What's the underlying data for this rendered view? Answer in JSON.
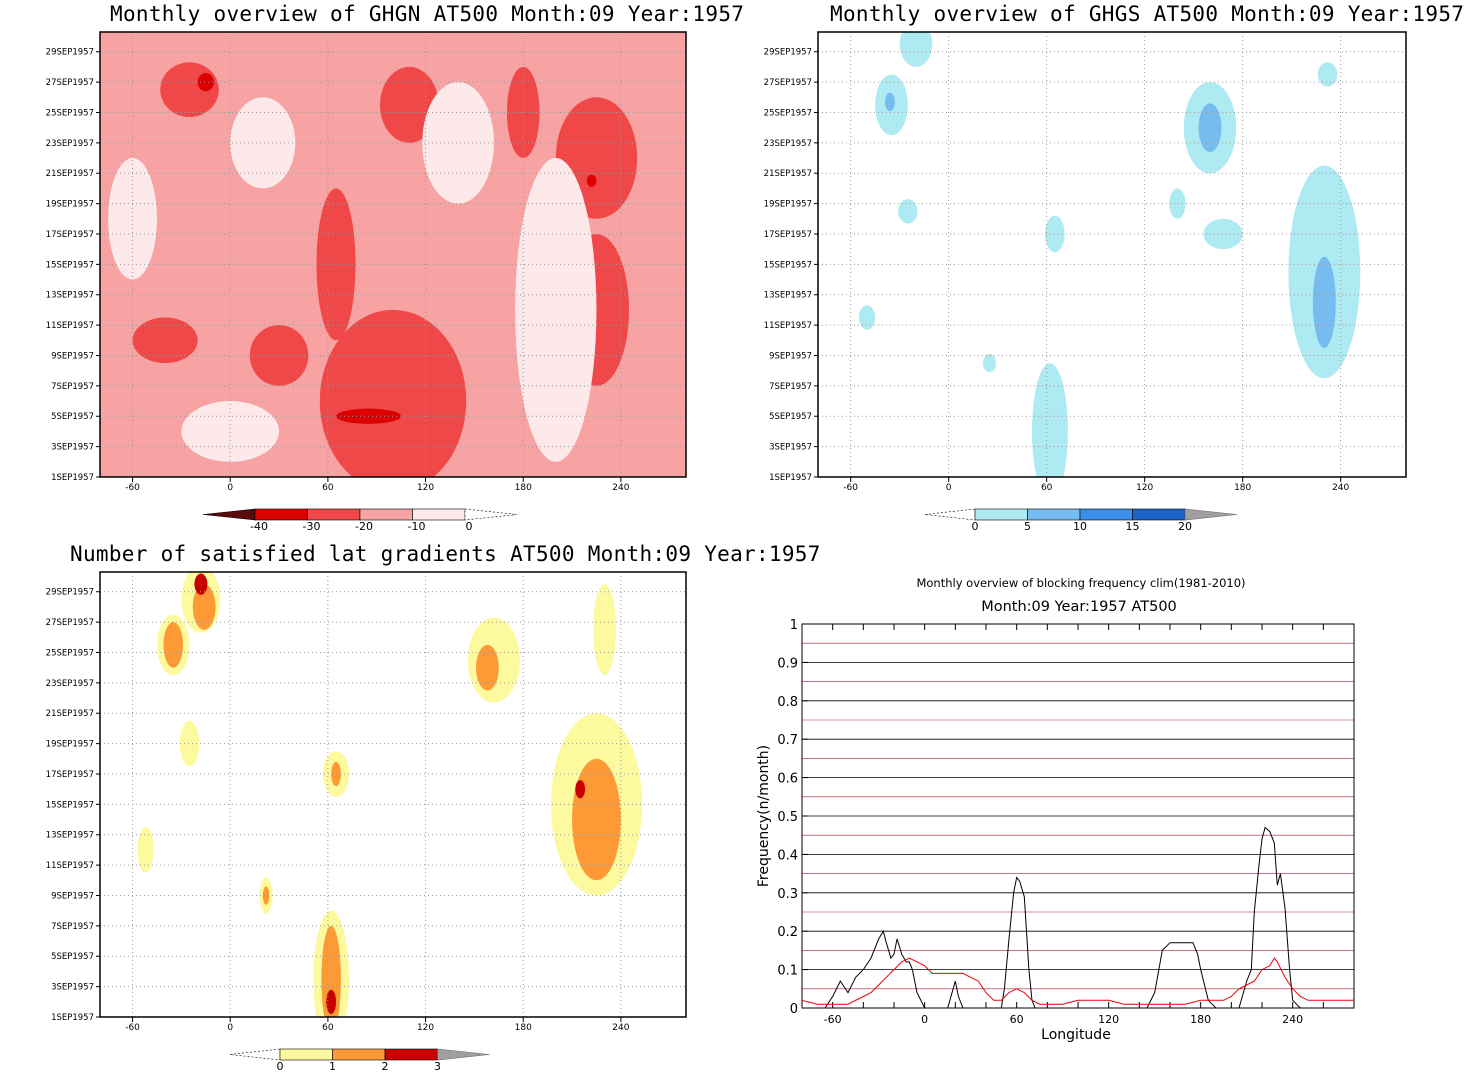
{
  "chart_data": [
    {
      "type": "heatmap",
      "title": "Monthly overview of GHGN AT500 Month:09 Year:1957",
      "xlabel": "",
      "ylabel": "",
      "xticks": [
        "-60",
        "0",
        "60",
        "120",
        "180",
        "240"
      ],
      "yticks": [
        "1SEP1957",
        "3SEP1957",
        "5SEP1957",
        "7SEP1957",
        "9SEP1957",
        "11SEP1957",
        "13SEP1957",
        "15SEP1957",
        "17SEP1957",
        "19SEP1957",
        "21SEP1957",
        "23SEP1957",
        "25SEP1957",
        "27SEP1957",
        "29SEP1957"
      ],
      "xlim": [
        -80,
        280
      ],
      "colorbar": {
        "levels": [
          "-40",
          "-30",
          "-20",
          "-10",
          "0"
        ],
        "colors": [
          "#5a0a0a",
          "#dd0000",
          "#f04848",
          "#f7a3a3",
          "#fde9e9"
        ]
      },
      "regions": [
        {
          "level": "-20",
          "x": 110,
          "y": 25.5,
          "rx": 18,
          "ry": 2.5
        },
        {
          "level": "-20",
          "x": -25,
          "y": 26.5,
          "rx": 18,
          "ry": 1.8
        },
        {
          "level": "-30",
          "x": -15,
          "y": 27,
          "rx": 5,
          "ry": 0.6
        },
        {
          "level": "-20",
          "x": 225,
          "y": 22,
          "rx": 25,
          "ry": 4
        },
        {
          "level": "-30",
          "x": 222,
          "y": 20.5,
          "rx": 3,
          "ry": 0.4
        },
        {
          "level": "-20",
          "x": 65,
          "y": 15,
          "rx": 12,
          "ry": 5
        },
        {
          "level": "-20",
          "x": 225,
          "y": 12,
          "rx": 20,
          "ry": 5
        },
        {
          "level": "-20",
          "x": 180,
          "y": 25,
          "rx": 10,
          "ry": 3
        },
        {
          "level": "-20",
          "x": 30,
          "y": 9,
          "rx": 18,
          "ry": 2
        },
        {
          "level": "-20",
          "x": -40,
          "y": 10,
          "rx": 20,
          "ry": 1.5
        },
        {
          "level": "-20",
          "x": 100,
          "y": 6,
          "rx": 45,
          "ry": 6
        },
        {
          "level": "-30",
          "x": 85,
          "y": 5,
          "rx": 20,
          "ry": 0.5
        },
        {
          "level": "0",
          "x": -60,
          "y": 18,
          "rx": 15,
          "ry": 4
        },
        {
          "level": "0",
          "x": 200,
          "y": 12,
          "rx": 25,
          "ry": 10
        },
        {
          "level": "0",
          "x": 20,
          "y": 23,
          "rx": 20,
          "ry": 3
        },
        {
          "level": "0",
          "x": 140,
          "y": 23,
          "rx": 22,
          "ry": 4
        },
        {
          "level": "0",
          "x": 0,
          "y": 4,
          "rx": 30,
          "ry": 2
        }
      ]
    },
    {
      "type": "heatmap",
      "title": "Monthly overview of GHGS AT500 Month:09 Year:1957",
      "xlabel": "",
      "ylabel": "",
      "xticks": [
        "-60",
        "0",
        "60",
        "120",
        "180",
        "240"
      ],
      "yticks": [
        "1SEP1957",
        "3SEP1957",
        "5SEP1957",
        "7SEP1957",
        "9SEP1957",
        "11SEP1957",
        "13SEP1957",
        "15SEP1957",
        "17SEP1957",
        "19SEP1957",
        "21SEP1957",
        "23SEP1957",
        "25SEP1957",
        "27SEP1957",
        "29SEP1957"
      ],
      "xlim": [
        -80,
        280
      ],
      "colorbar": {
        "levels": [
          "0",
          "5",
          "10",
          "15",
          "20"
        ],
        "colors": [
          "#aeeaf2",
          "#76bcf0",
          "#3a90e8",
          "#1a63c8"
        ]
      },
      "regions": [
        {
          "level": "0",
          "x": -35,
          "y": 25.5,
          "rx": 10,
          "ry": 2
        },
        {
          "level": "5",
          "x": -36,
          "y": 25.7,
          "rx": 3,
          "ry": 0.6
        },
        {
          "level": "0",
          "x": -20,
          "y": 29.5,
          "rx": 10,
          "ry": 1.5
        },
        {
          "level": "0",
          "x": 160,
          "y": 24,
          "rx": 16,
          "ry": 3
        },
        {
          "level": "5",
          "x": 160,
          "y": 24,
          "rx": 7,
          "ry": 1.6
        },
        {
          "level": "0",
          "x": 230,
          "y": 14.5,
          "rx": 22,
          "ry": 7
        },
        {
          "level": "5",
          "x": 230,
          "y": 12.5,
          "rx": 7,
          "ry": 3
        },
        {
          "level": "0",
          "x": 168,
          "y": 17,
          "rx": 12,
          "ry": 1
        },
        {
          "level": "0",
          "x": 140,
          "y": 19,
          "rx": 5,
          "ry": 1
        },
        {
          "level": "0",
          "x": -25,
          "y": 18.5,
          "rx": 6,
          "ry": 0.8
        },
        {
          "level": "0",
          "x": 65,
          "y": 17,
          "rx": 6,
          "ry": 1.2
        },
        {
          "level": "0",
          "x": -50,
          "y": 11.5,
          "rx": 5,
          "ry": 0.8
        },
        {
          "level": "0",
          "x": 25,
          "y": 8.5,
          "rx": 4,
          "ry": 0.6
        },
        {
          "level": "0",
          "x": 62,
          "y": 4,
          "rx": 11,
          "ry": 4.5
        },
        {
          "level": "0",
          "x": 232,
          "y": 27.5,
          "rx": 6,
          "ry": 0.8
        }
      ]
    },
    {
      "type": "heatmap",
      "title": "Number of satisfied lat gradients AT500 Month:09 Year:1957",
      "xlabel": "",
      "ylabel": "",
      "xticks": [
        "-60",
        "0",
        "60",
        "120",
        "180",
        "240"
      ],
      "yticks": [
        "1SEP1957",
        "3SEP1957",
        "5SEP1957",
        "7SEP1957",
        "9SEP1957",
        "11SEP1957",
        "13SEP1957",
        "15SEP1957",
        "17SEP1957",
        "19SEP1957",
        "21SEP1957",
        "23SEP1957",
        "25SEP1957",
        "27SEP1957",
        "29SEP1957"
      ],
      "xlim": [
        -80,
        280
      ],
      "colorbar": {
        "levels": [
          "0",
          "1",
          "2",
          "3"
        ],
        "colors": [
          "#fdf99e",
          "#fd9a35",
          "#c80000"
        ]
      },
      "regions": [
        {
          "level": "0",
          "x": -35,
          "y": 25.5,
          "rx": 10,
          "ry": 2
        },
        {
          "level": "1",
          "x": -35,
          "y": 25.5,
          "rx": 6,
          "ry": 1.5
        },
        {
          "level": "0",
          "x": -18,
          "y": 28.5,
          "rx": 12,
          "ry": 2.2
        },
        {
          "level": "1",
          "x": -16,
          "y": 28,
          "rx": 7,
          "ry": 1.5
        },
        {
          "level": "2",
          "x": -18,
          "y": 29.5,
          "rx": 4,
          "ry": 0.7
        },
        {
          "level": "0",
          "x": 162,
          "y": 24.5,
          "rx": 16,
          "ry": 2.8
        },
        {
          "level": "1",
          "x": 158,
          "y": 24,
          "rx": 7,
          "ry": 1.5
        },
        {
          "level": "0",
          "x": 225,
          "y": 15,
          "rx": 28,
          "ry": 6
        },
        {
          "level": "1",
          "x": 225,
          "y": 14,
          "rx": 15,
          "ry": 4
        },
        {
          "level": "2",
          "x": 215,
          "y": 16,
          "rx": 3,
          "ry": 0.6
        },
        {
          "level": "0",
          "x": 230,
          "y": 26.5,
          "rx": 7,
          "ry": 3
        },
        {
          "level": "0",
          "x": 65,
          "y": 17,
          "rx": 8,
          "ry": 1.5
        },
        {
          "level": "1",
          "x": 65,
          "y": 17,
          "rx": 3,
          "ry": 0.8
        },
        {
          "level": "0",
          "x": -25,
          "y": 19,
          "rx": 6,
          "ry": 1.5
        },
        {
          "level": "0",
          "x": -52,
          "y": 12,
          "rx": 5,
          "ry": 1.5
        },
        {
          "level": "0",
          "x": 22,
          "y": 9,
          "rx": 4,
          "ry": 1.2
        },
        {
          "level": "1",
          "x": 22,
          "y": 9,
          "rx": 2,
          "ry": 0.6
        },
        {
          "level": "0",
          "x": 62,
          "y": 3.5,
          "rx": 11,
          "ry": 4.5
        },
        {
          "level": "1",
          "x": 62,
          "y": 3.5,
          "rx": 6,
          "ry": 3.5
        },
        {
          "level": "2",
          "x": 62,
          "y": 2,
          "rx": 3,
          "ry": 0.8
        }
      ]
    },
    {
      "type": "line",
      "title": "Monthly overview of blocking frequency clim(1981-2010)",
      "subtitle": "Month:09 Year:1957  AT500",
      "xlabel": "Longitude",
      "ylabel": "Frequency(n/month)",
      "xticks": [
        "-60",
        "0",
        "60",
        "120",
        "180",
        "240"
      ],
      "yticks": [
        "0",
        "0.1",
        "0.2",
        "0.3",
        "0.4",
        "0.5",
        "0.6",
        "0.7",
        "0.8",
        "0.9",
        "1"
      ],
      "xlim": [
        -80,
        280
      ],
      "ylim": [
        0,
        1
      ],
      "grid": true,
      "series": [
        {
          "color": "#000000",
          "x": [
            -80,
            -65,
            -60,
            -55,
            -50,
            -45,
            -40,
            -35,
            -30,
            -27,
            -25,
            -22,
            -20,
            -18,
            -15,
            -12,
            -10,
            -8,
            -5,
            0,
            5,
            10,
            15,
            20,
            22,
            25,
            30,
            35,
            40,
            45,
            50,
            52,
            55,
            58,
            60,
            62,
            65,
            68,
            70,
            72,
            75,
            80,
            90,
            100,
            110,
            120,
            130,
            140,
            145,
            150,
            155,
            160,
            170,
            175,
            178,
            180,
            185,
            190,
            195,
            200,
            205,
            210,
            213,
            215,
            218,
            220,
            222,
            225,
            228,
            230,
            232,
            235,
            238,
            240,
            245,
            250,
            260,
            270,
            280
          ],
          "y": [
            0,
            0,
            0.03,
            0.07,
            0.04,
            0.08,
            0.1,
            0.13,
            0.18,
            0.2,
            0.17,
            0.13,
            0.14,
            0.18,
            0.14,
            0.12,
            0.12,
            0.1,
            0.04,
            0,
            0,
            0,
            0,
            0.07,
            0.03,
            0,
            0,
            0,
            0,
            0,
            0,
            0.05,
            0.18,
            0.3,
            0.34,
            0.33,
            0.29,
            0.1,
            0.02,
            0,
            0,
            0,
            0,
            0,
            0,
            0,
            0,
            0,
            0,
            0.04,
            0.15,
            0.17,
            0.17,
            0.17,
            0.14,
            0.1,
            0.02,
            0,
            0,
            0,
            0,
            0.07,
            0.1,
            0.25,
            0.37,
            0.44,
            0.47,
            0.46,
            0.43,
            0.32,
            0.35,
            0.26,
            0.1,
            0.02,
            0,
            0,
            0,
            0,
            0
          ]
        },
        {
          "color": "#e8000b",
          "x": [
            -80,
            -70,
            -60,
            -50,
            -40,
            -35,
            -30,
            -25,
            -20,
            -15,
            -10,
            -5,
            0,
            5,
            10,
            15,
            20,
            25,
            30,
            35,
            40,
            45,
            50,
            55,
            60,
            65,
            70,
            75,
            80,
            90,
            100,
            110,
            120,
            130,
            140,
            150,
            160,
            170,
            180,
            190,
            195,
            200,
            205,
            210,
            215,
            220,
            225,
            228,
            230,
            235,
            240,
            245,
            250,
            260,
            270,
            280
          ],
          "y": [
            0.02,
            0.01,
            0.01,
            0.01,
            0.03,
            0.04,
            0.06,
            0.08,
            0.1,
            0.12,
            0.13,
            0.12,
            0.11,
            0.09,
            0.09,
            0.09,
            0.09,
            0.09,
            0.08,
            0.07,
            0.04,
            0.02,
            0.02,
            0.04,
            0.05,
            0.04,
            0.02,
            0.01,
            0.01,
            0.01,
            0.02,
            0.02,
            0.02,
            0.01,
            0.01,
            0.01,
            0.01,
            0.01,
            0.02,
            0.02,
            0.02,
            0.03,
            0.05,
            0.06,
            0.07,
            0.1,
            0.11,
            0.13,
            0.12,
            0.08,
            0.05,
            0.03,
            0.02,
            0.02,
            0.02,
            0.02
          ]
        }
      ]
    }
  ]
}
